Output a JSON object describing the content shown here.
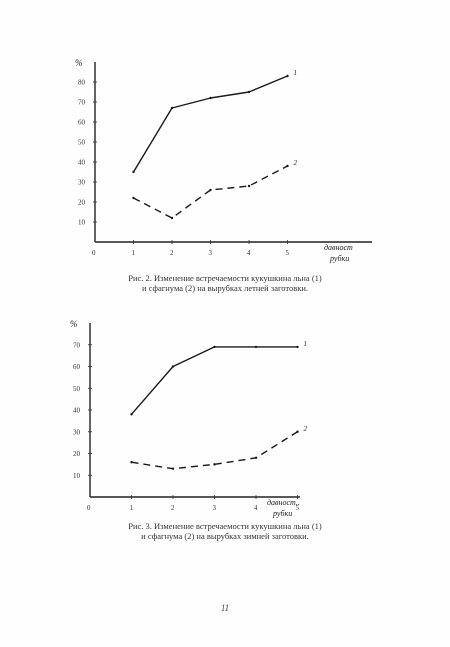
{
  "charts": [
    {
      "chart_data": {
        "type": "line",
        "x": [
          1,
          2,
          3,
          4,
          5
        ],
        "xticks": [
          "0",
          "1",
          "2",
          "3",
          "4",
          "5"
        ],
        "yticks": [
          "10",
          "20",
          "30",
          "40",
          "50",
          "60",
          "70",
          "80"
        ],
        "ylabel": "%",
        "xlabel": [
          "давност",
          "рубки"
        ],
        "ylim": [
          0,
          90
        ],
        "xlim": [
          0,
          5
        ],
        "series": [
          {
            "name": "1",
            "values": [
              35,
              67,
              72,
              75,
              83
            ],
            "style": "solid"
          },
          {
            "name": "2",
            "values": [
              22,
              12,
              26,
              28,
              38
            ],
            "style": "dashed"
          }
        ]
      },
      "caption": [
        "Рис. 2. Изменение встречаемости кукушкина льна (1)",
        "и сфагнума (2) на вырубках летней заготовки."
      ]
    },
    {
      "chart_data": {
        "type": "line",
        "x": [
          1,
          2,
          3,
          4,
          5
        ],
        "xticks": [
          "0",
          "1",
          "2",
          "3",
          "4",
          "5"
        ],
        "yticks": [
          "10",
          "20",
          "30",
          "40",
          "50",
          "60",
          "70"
        ],
        "ylabel": "%",
        "xlabel": [
          "давност..",
          "рубки"
        ],
        "ylim": [
          0,
          80
        ],
        "xlim": [
          0,
          5
        ],
        "series": [
          {
            "name": "1",
            "values": [
              38,
              60,
              69,
              69,
              69
            ],
            "style": "solid"
          },
          {
            "name": "2",
            "values": [
              16,
              13,
              15,
              18,
              30
            ],
            "style": "dashed"
          }
        ]
      },
      "caption": [
        "Рис. 3. Изменение встречаемости кукушкина льна (1)",
        "и сфагнума (2) на вырубках зимней заготовки."
      ]
    }
  ],
  "page_number": "11"
}
